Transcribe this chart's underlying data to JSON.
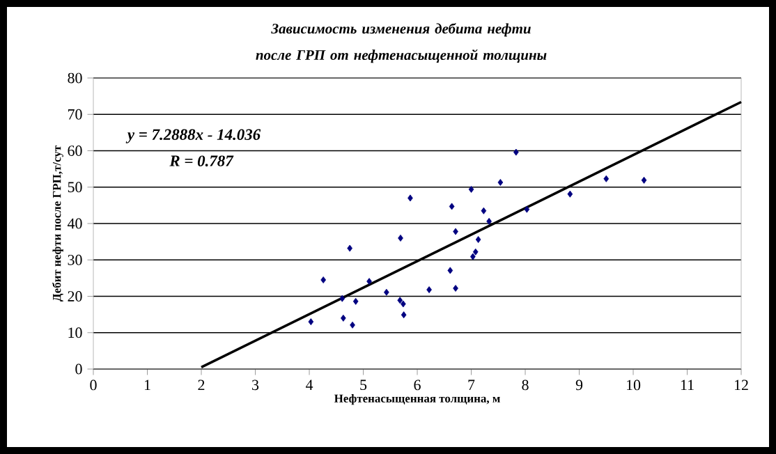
{
  "chart_data": {
    "type": "scatter",
    "title": "Зависимость изменения дебита нефти после ГРП от нефтенасыщенной толщины",
    "xlabel": "Нефтенасыщенная толщина, м",
    "ylabel": "Дебит нефти после ГРП,т/сут",
    "annotations": [
      "y = 7.2888x - 14.036",
      "R  = 0.787"
    ],
    "xlim": [
      0,
      12
    ],
    "ylim": [
      0,
      80
    ],
    "xticks": [
      0,
      1,
      2,
      3,
      4,
      5,
      6,
      7,
      8,
      9,
      10,
      11,
      12
    ],
    "yticks": [
      0,
      10,
      20,
      30,
      40,
      50,
      60,
      70,
      80
    ],
    "grid": "y",
    "series": [
      {
        "marker": "diamond",
        "color": "#000080",
        "x": [
          4.03,
          4.26,
          4.61,
          4.63,
          4.75,
          4.8,
          4.86,
          5.11,
          5.43,
          5.69,
          5.68,
          5.74,
          5.75,
          5.87,
          6.22,
          6.64,
          6.61,
          6.71,
          6.71,
          7.0,
          7.03,
          7.08,
          7.13,
          7.23,
          7.33,
          7.54,
          7.83,
          8.03,
          8.83,
          9.5,
          10.2
        ],
        "values": [
          13.0,
          24.5,
          19.4,
          14.0,
          33.2,
          12.1,
          18.6,
          24.1,
          21.1,
          36.0,
          18.9,
          17.9,
          14.9,
          47.0,
          21.8,
          44.7,
          27.1,
          37.8,
          22.2,
          49.4,
          30.9,
          32.2,
          35.6,
          43.5,
          40.6,
          51.3,
          59.6,
          43.9,
          48.1,
          52.3,
          51.9
        ]
      },
      {
        "type": "line",
        "marker": "none",
        "color": "#000000",
        "x": [
          2,
          12
        ],
        "values": [
          0.5,
          73.4
        ]
      }
    ]
  }
}
